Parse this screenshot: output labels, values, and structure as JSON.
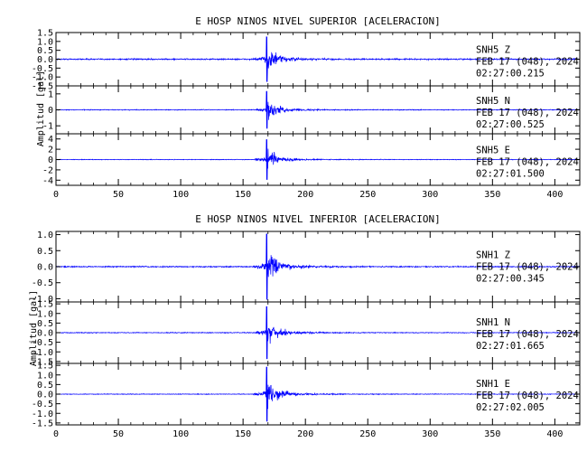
{
  "chart_data": [
    {
      "type": "line",
      "title": "E HOSP NINOS NIVEL SUPERIOR [ACELERACION]",
      "ylabel": "Amplitud [gal]",
      "xlim": [
        0,
        420
      ],
      "x_ticks": [
        "0",
        "50",
        "100",
        "150",
        "200",
        "250",
        "300",
        "350",
        "400"
      ],
      "color": "#0000ff",
      "event_time_s": 169,
      "series": [
        {
          "name": "SNH5   Z",
          "date": "FEB 17 (048), 2024",
          "time": "02:27:00.215",
          "ylim": [
            -1.5,
            1.5
          ],
          "y_ticks": [
            "1.5",
            "1.0",
            "0.5",
            "0.0",
            "-0.5",
            "-1.0",
            "-1.5"
          ],
          "noise_amplitude": 0.06,
          "peak_amplitude": 1.3
        },
        {
          "name": "SNH5   N",
          "date": "FEB 17 (048), 2024",
          "time": "02:27:00.525",
          "ylim": [
            -1.5,
            1.5
          ],
          "y_ticks": [
            "1",
            "0",
            "-1"
          ],
          "noise_amplitude": 0.04,
          "peak_amplitude": 1.2
        },
        {
          "name": "SNH5   E",
          "date": "FEB 17 (048), 2024",
          "time": "02:27:01.500",
          "ylim": [
            -5,
            5
          ],
          "y_ticks": [
            "4",
            "2",
            "0",
            "-2",
            "-4"
          ],
          "noise_amplitude": 0.1,
          "peak_amplitude": 4.0
        }
      ]
    },
    {
      "type": "line",
      "title": "E HOSP NINOS NIVEL INFERIOR [ACELERACION]",
      "ylabel": "Amplitud [gal]",
      "xlim": [
        0,
        420
      ],
      "x_ticks": [
        "0",
        "50",
        "100",
        "150",
        "200",
        "250",
        "300",
        "350",
        "400"
      ],
      "color": "#0000ff",
      "event_time_s": 169,
      "series": [
        {
          "name": "SNH1   Z",
          "date": "FEB 17 (048), 2024",
          "time": "02:27:00.345",
          "ylim": [
            -1.1,
            1.1
          ],
          "y_ticks": [
            "1.0",
            "0.5",
            "0.0",
            "-0.5",
            "-1.0"
          ],
          "noise_amplitude": 0.03,
          "peak_amplitude": 1.05
        },
        {
          "name": "SNH1   N",
          "date": "FEB 17 (048), 2024",
          "time": "02:27:01.665",
          "ylim": [
            -1.6,
            1.6
          ],
          "y_ticks": [
            "1.5",
            "1.0",
            "0.5",
            "0.0",
            "-0.5",
            "-1.0",
            "-1.5"
          ],
          "noise_amplitude": 0.035,
          "peak_amplitude": 1.4
        },
        {
          "name": "SNH1   E",
          "date": "FEB 17 (048), 2024",
          "time": "02:27:02.005",
          "ylim": [
            -1.6,
            1.6
          ],
          "y_ticks": [
            "1.5",
            "1.0",
            "0.5",
            "0.0",
            "-0.5",
            "-1.0",
            "-1.5"
          ],
          "noise_amplitude": 0.03,
          "peak_amplitude": 1.45
        }
      ]
    }
  ]
}
